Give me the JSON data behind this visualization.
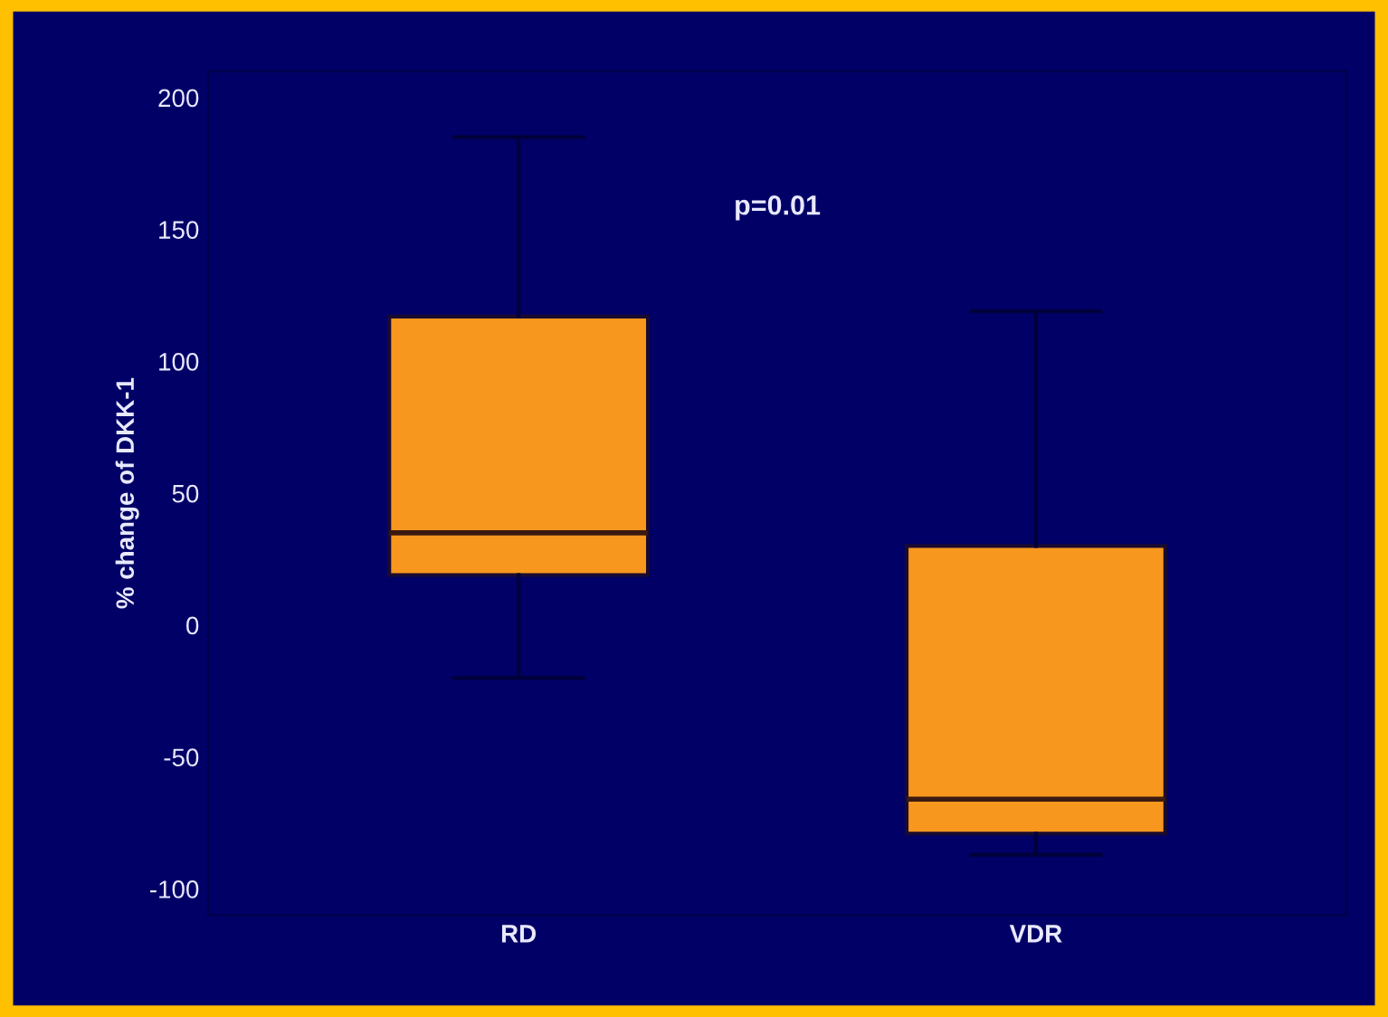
{
  "chart_data": {
    "type": "box",
    "ylabel": "% change of DKK-1",
    "categories": [
      "RD",
      "VDR"
    ],
    "boxes": [
      {
        "low": -20,
        "q1": 19,
        "median": 35,
        "q3": 117,
        "high": 185
      },
      {
        "low": -87,
        "q1": -79,
        "median": -66,
        "q3": 30,
        "high": 119
      }
    ],
    "color": "#f7971e",
    "ylim": [
      -110,
      210
    ],
    "yticks": [
      -100,
      -50,
      0,
      50,
      100,
      150,
      200
    ],
    "grid": false,
    "annotations": [
      "p=0.01"
    ]
  }
}
